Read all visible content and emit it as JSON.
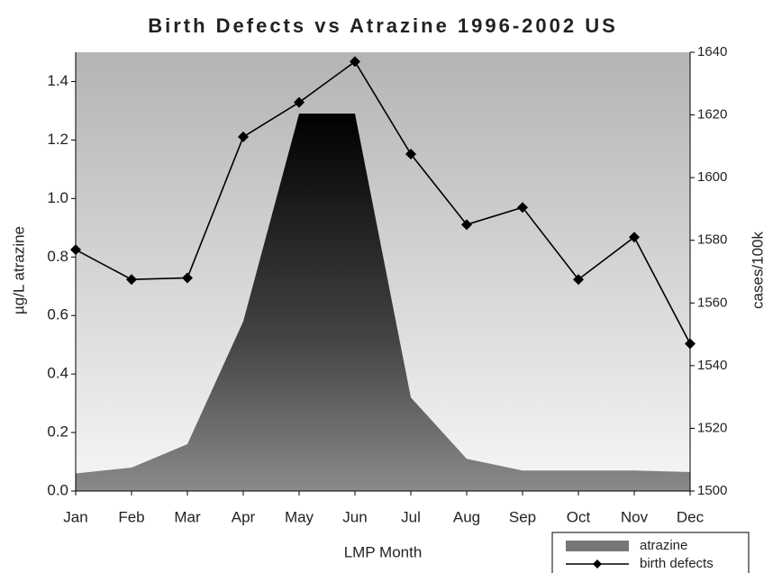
{
  "chart_data": {
    "type": "area_line",
    "title": "Birth Defects vs Atrazine 1996-2002 US",
    "x_label": "LMP Month",
    "y_label": "µg/L atrazine",
    "y2_label": "cases/100k",
    "categories": [
      "Jan",
      "Feb",
      "Mar",
      "Apr",
      "May",
      "Jun",
      "Jul",
      "Aug",
      "Sep",
      "Oct",
      "Nov",
      "Dec"
    ],
    "series": [
      {
        "name": "atrazine",
        "color": "#777777",
        "values": [
          0.06,
          0.08,
          0.16,
          0.58,
          1.29,
          1.29,
          0.32,
          0.11,
          0.07,
          0.07,
          0.07,
          0.065
        ]
      },
      {
        "name": "birth defects",
        "color": "#000000",
        "axis": "y2",
        "values": [
          1577,
          1567.5,
          1568,
          1613,
          1624,
          1637,
          1607.5,
          1585,
          1590.5,
          1567.5,
          1581,
          1547
        ]
      }
    ],
    "ylim": [
      0,
      1.5
    ],
    "yticks": [
      {
        "value": 0,
        "label": "0.0"
      },
      0.2,
      0.4,
      0.6,
      0.8,
      {
        "value": 1,
        "label": "1.0"
      },
      1.2,
      1.4
    ],
    "y2lim": [
      1500,
      1640
    ],
    "y2ticks": [
      1500,
      1520,
      1540,
      1560,
      1580,
      1600,
      1620,
      1640
    ],
    "legend": "lower right"
  }
}
